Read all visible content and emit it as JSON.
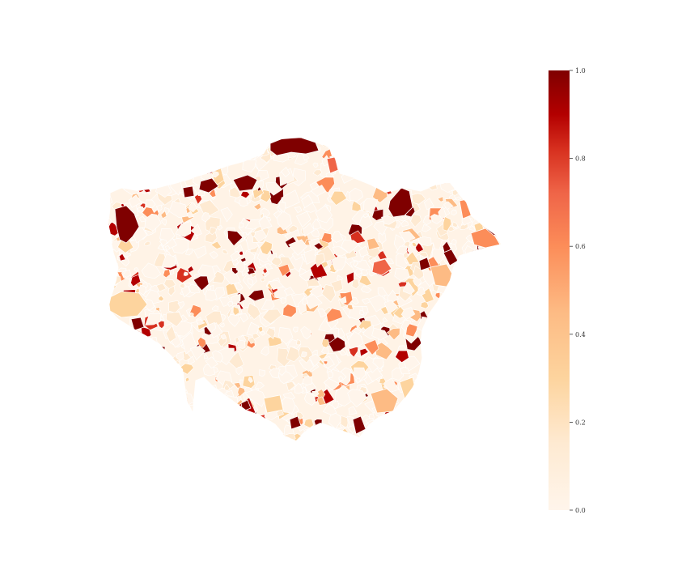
{
  "map": {
    "colormap": "YlOrRd-like (cream to dark red)",
    "color_stops": [
      "#fff5eb",
      "#fdd49e",
      "#fdbb84",
      "#fc8d59",
      "#ef6548",
      "#d7301f",
      "#b30000",
      "#7f0000"
    ],
    "outline_color": "#ffffff",
    "background_color": "#ffffff",
    "highlight_districts": [
      {
        "name": "north-enfield-dark",
        "value": 1.0
      },
      {
        "name": "northwest-harrow-dark",
        "value": 0.98
      },
      {
        "name": "northeast-barking-dark",
        "value": 0.97
      },
      {
        "name": "east-bexley-orange",
        "value": 0.45
      },
      {
        "name": "southwest-orange",
        "value": 0.25
      },
      {
        "name": "southeast-bromley-orange",
        "value": 0.35
      }
    ]
  },
  "colorbar": {
    "range": [
      0.0,
      1.0
    ],
    "ticks": [
      {
        "value": 0.0,
        "label": "0.0"
      },
      {
        "value": 0.2,
        "label": "0.2"
      },
      {
        "value": 0.4,
        "label": "0.4"
      },
      {
        "value": 0.6,
        "label": "0.6"
      },
      {
        "value": 0.8,
        "label": "0.8"
      },
      {
        "value": 1.0,
        "label": "1.0"
      }
    ]
  }
}
